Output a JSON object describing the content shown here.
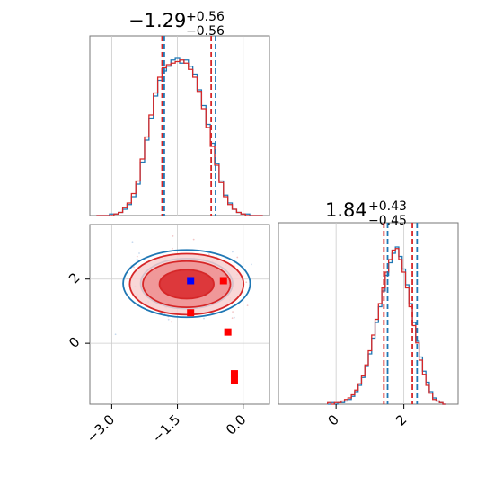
{
  "chart_data": [
    {
      "panel": "marginal-param-1",
      "type": "histogram",
      "title_value": "−1.29",
      "title_plus": "+0.56",
      "title_minus": "−0.56",
      "xlim": [
        -3.5,
        0.6
      ],
      "grid": true,
      "bins_x": [
        -3.3,
        -3.2,
        -3.1,
        -3.0,
        -2.9,
        -2.8,
        -2.7,
        -2.6,
        -2.5,
        -2.4,
        -2.3,
        -2.2,
        -2.1,
        -2.0,
        -1.9,
        -1.8,
        -1.7,
        -1.6,
        -1.5,
        -1.4,
        -1.3,
        -1.2,
        -1.1,
        -1.0,
        -0.9,
        -0.8,
        -0.7,
        -0.6,
        -0.5,
        -0.4,
        -0.3,
        -0.2,
        -0.1,
        0.0,
        0.1,
        0.2,
        0.3,
        0.4
      ],
      "series": [
        {
          "color": "#1f77b4",
          "values": [
            0,
            0,
            0,
            1,
            1,
            2,
            4,
            7,
            12,
            20,
            34,
            48,
            62,
            76,
            86,
            92,
            95,
            99,
            100,
            97,
            99,
            95,
            90,
            80,
            70,
            58,
            46,
            33,
            22,
            13,
            8,
            4,
            2,
            1,
            1,
            0,
            0,
            0
          ]
        },
        {
          "color": "#d62728",
          "values": [
            0,
            0,
            0,
            0,
            1,
            2,
            5,
            8,
            14,
            22,
            36,
            50,
            64,
            78,
            88,
            94,
            96,
            97,
            98,
            99,
            97,
            93,
            88,
            79,
            68,
            56,
            44,
            32,
            21,
            12,
            7,
            4,
            2,
            1,
            0,
            0,
            0,
            0
          ]
        }
      ],
      "quantiles": [
        {
          "color": "#d62728",
          "x": [
            -1.85,
            -0.73
          ]
        },
        {
          "color": "#1f77b4",
          "x": [
            -1.8,
            -0.63
          ]
        }
      ]
    },
    {
      "panel": "marginal-param-2",
      "type": "histogram",
      "title_value": "1.84",
      "title_plus": "+0.43",
      "title_minus": "−0.45",
      "xlim": [
        -1.7,
        3.6
      ],
      "xticks": [
        "0",
        "2"
      ],
      "grid": true,
      "bins_x": [
        -0.2,
        -0.1,
        0.0,
        0.1,
        0.2,
        0.3,
        0.4,
        0.5,
        0.6,
        0.7,
        0.8,
        0.9,
        1.0,
        1.1,
        1.2,
        1.3,
        1.4,
        1.5,
        1.6,
        1.7,
        1.8,
        1.9,
        2.0,
        2.1,
        2.2,
        2.3,
        2.4,
        2.5,
        2.6,
        2.7,
        2.8,
        2.9,
        3.0,
        3.1,
        3.2
      ],
      "series": [
        {
          "color": "#1f77b4",
          "values": [
            0,
            1,
            0,
            1,
            1,
            2,
            3,
            5,
            8,
            12,
            17,
            24,
            32,
            42,
            52,
            62,
            72,
            82,
            90,
            96,
            100,
            94,
            86,
            76,
            64,
            52,
            40,
            30,
            21,
            14,
            8,
            4,
            2,
            1,
            0
          ]
        },
        {
          "color": "#d62728",
          "values": [
            1,
            0,
            1,
            1,
            2,
            3,
            4,
            6,
            9,
            13,
            18,
            25,
            34,
            44,
            54,
            64,
            74,
            84,
            92,
            98,
            99,
            92,
            84,
            74,
            62,
            50,
            39,
            28,
            19,
            12,
            7,
            3,
            2,
            1,
            0
          ]
        }
      ],
      "quantiles": [
        {
          "color": "#d62728",
          "x": [
            1.41,
            2.25
          ]
        },
        {
          "color": "#1f77b4",
          "x": [
            1.52,
            2.39
          ]
        }
      ]
    },
    {
      "panel": "joint-param-1-param-2",
      "type": "scatter",
      "xlim": [
        -3.5,
        0.6
      ],
      "ylim": [
        -1.9,
        3.7
      ],
      "xticks": [
        "−3.0",
        "−1.5",
        "0.0"
      ],
      "yticks": [
        "0",
        "2"
      ],
      "grid": true,
      "contours": [
        {
          "color": "#1f77b4",
          "cx": -1.29,
          "cy": 1.86,
          "rx": [
            1.45,
            1.05,
            0.6
          ],
          "ry": [
            1.05,
            0.78,
            0.45
          ]
        },
        {
          "color": "#d62728",
          "cx": -1.29,
          "cy": 1.84,
          "rx": [
            1.3,
            1.0,
            0.62
          ],
          "ry": [
            0.95,
            0.72,
            0.45
          ]
        }
      ],
      "points": [
        {
          "color": "#0000ff",
          "x": -1.2,
          "y": 1.95
        },
        {
          "color": "#ff0000",
          "x": -0.45,
          "y": 1.95
        },
        {
          "color": "#ff0000",
          "x": -1.2,
          "y": 0.95
        },
        {
          "color": "#ff0000",
          "x": -0.35,
          "y": 0.35
        },
        {
          "color": "#ff0000",
          "x": -0.2,
          "y": -0.95
        },
        {
          "color": "#ff0000",
          "x": -0.2,
          "y": -1.15
        }
      ]
    }
  ]
}
